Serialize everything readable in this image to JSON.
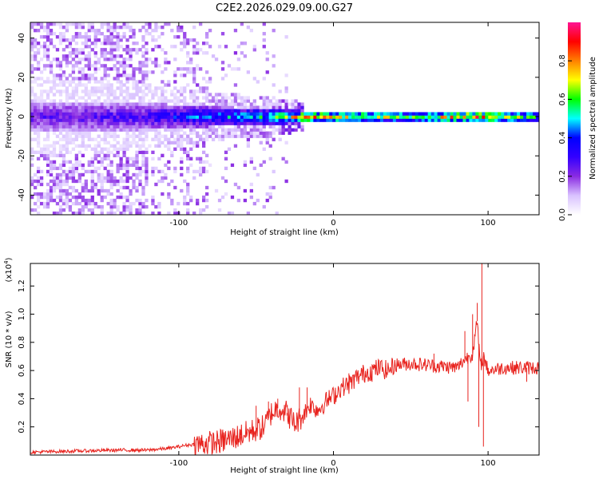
{
  "title": "C2E2.2026.029.09.00.G27",
  "chart_data": [
    {
      "type": "heatmap",
      "name": "spectrogram",
      "xlabel": "Height of straight line (km)",
      "ylabel": "Frequency (Hz)",
      "xlim": [
        -196,
        133
      ],
      "ylim": [
        -50,
        48
      ],
      "xticks": [
        -100,
        0,
        100
      ],
      "yticks": [
        -40,
        -20,
        0,
        20,
        40
      ],
      "colorbar": {
        "label": "Normalized spectral amplitude",
        "range": [
          0.0,
          1.0
        ],
        "ticks": [
          "0.0",
          "0.2",
          "0.4",
          "0.6",
          "0.8"
        ],
        "tick_values": [
          0.0,
          0.2,
          0.4,
          0.6,
          0.8
        ],
        "colors": [
          "#ffffff",
          "#d9c2ff",
          "#8a2be2",
          "#3300ff",
          "#0000ff",
          "#00ffff",
          "#00ff00",
          "#ffff00",
          "#ff8000",
          "#ff0000",
          "#ff1493"
        ]
      },
      "band": {
        "center_hz": 0,
        "description_points": [
          {
            "x": -196,
            "halfwidth": 8,
            "amp": 0.25
          },
          {
            "x": -120,
            "halfwidth": 7,
            "amp": 0.3
          },
          {
            "x": -80,
            "halfwidth": 5,
            "amp": 0.45
          },
          {
            "x": -40,
            "halfwidth": 4,
            "amp": 0.55
          },
          {
            "x": -20,
            "halfwidth": 3,
            "amp": 0.8
          },
          {
            "x": 0,
            "halfwidth": 3,
            "amp": 0.75
          },
          {
            "x": 50,
            "halfwidth": 3,
            "amp": 0.6
          },
          {
            "x": 90,
            "halfwidth": 3,
            "amp": 0.85
          },
          {
            "x": 133,
            "halfwidth": 3,
            "amp": 0.55
          }
        ]
      }
    },
    {
      "type": "line",
      "name": "snr",
      "xlabel": "Height of straight line (km)",
      "ylabel": "SNR (10 * v/v)",
      "y_multiplier": "(x10",
      "y_multiplier_exp": "4",
      "y_multiplier_close": ")",
      "xlim": [
        -196,
        133
      ],
      "ylim": [
        0,
        1.36
      ],
      "xticks": [
        -100,
        0,
        100
      ],
      "yticks": [
        0.2,
        0.4,
        0.6,
        0.8,
        1.0,
        1.2
      ],
      "ytick_labels": [
        "0.2",
        "0.4",
        "0.6",
        "0.8",
        "1.0",
        "1.2"
      ],
      "color": "#e8231e",
      "series": [
        {
          "name": "SNR",
          "x": [
            -196,
            -180,
            -160,
            -140,
            -120,
            -105,
            -95,
            -85,
            -75,
            -65,
            -55,
            -45,
            -40,
            -35,
            -30,
            -25,
            -20,
            -15,
            -10,
            -5,
            0,
            5,
            10,
            15,
            20,
            25,
            30,
            35,
            40,
            50,
            60,
            70,
            80,
            85,
            90,
            93,
            95,
            97,
            100,
            110,
            120,
            133
          ],
          "y": [
            0.02,
            0.025,
            0.03,
            0.035,
            0.035,
            0.05,
            0.07,
            0.08,
            0.09,
            0.12,
            0.16,
            0.2,
            0.3,
            0.34,
            0.3,
            0.22,
            0.28,
            0.36,
            0.32,
            0.38,
            0.42,
            0.48,
            0.5,
            0.55,
            0.58,
            0.6,
            0.62,
            0.6,
            0.64,
            0.65,
            0.64,
            0.63,
            0.62,
            0.68,
            0.72,
            0.95,
            0.62,
            0.7,
            0.6,
            0.62,
            0.62,
            0.62
          ]
        }
      ],
      "spikes": [
        {
          "x": -60,
          "y": 0.18
        },
        {
          "x": -50,
          "y": 0.35
        },
        {
          "x": -42,
          "y": 0.38
        },
        {
          "x": -36,
          "y": 0.4
        },
        {
          "x": -30,
          "y": 0.28
        },
        {
          "x": -22,
          "y": 0.48
        },
        {
          "x": -17,
          "y": 0.48
        },
        {
          "x": 10,
          "y": 0.58
        },
        {
          "x": 25,
          "y": 0.52
        },
        {
          "x": 65,
          "y": 0.72
        },
        {
          "x": 85,
          "y": 0.88
        },
        {
          "x": 90,
          "y": 1.0
        },
        {
          "x": 93,
          "y": 1.08
        },
        {
          "x": 96,
          "y": 1.36
        },
        {
          "x": 97,
          "y": 0.06
        },
        {
          "x": 94,
          "y": 0.2
        },
        {
          "x": 87,
          "y": 0.38
        },
        {
          "x": 125,
          "y": 0.52
        }
      ]
    }
  ]
}
